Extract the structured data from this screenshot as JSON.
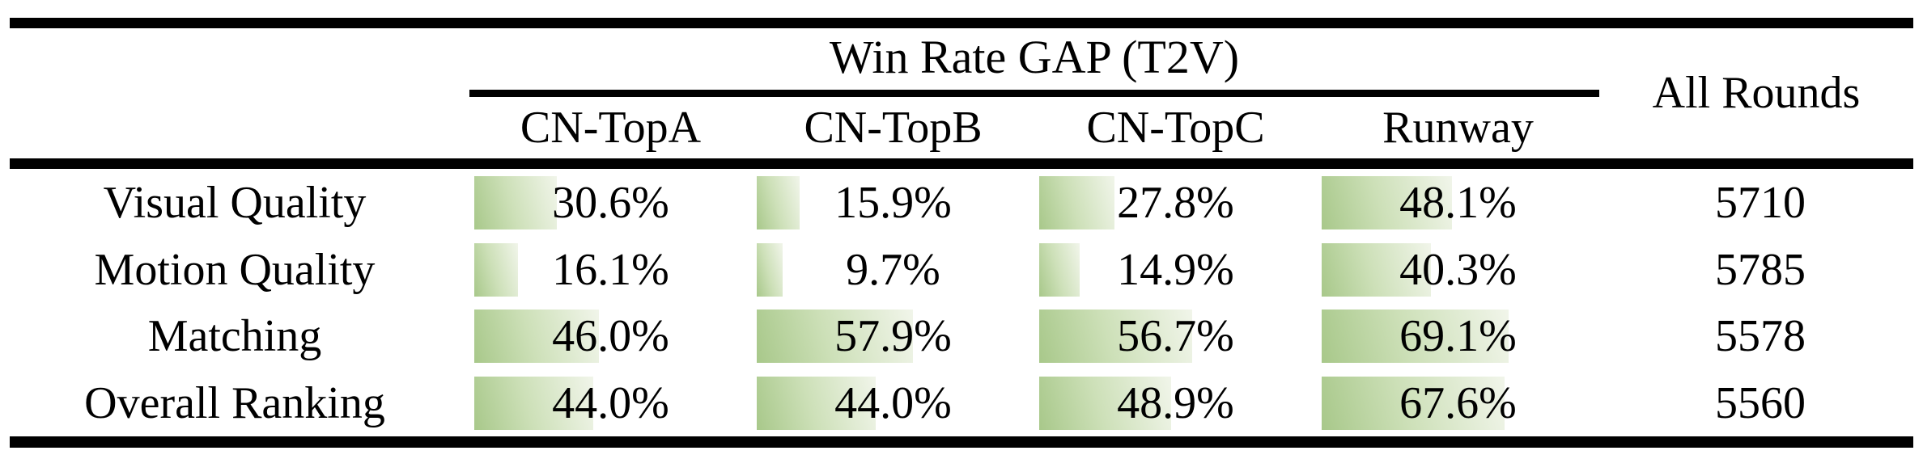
{
  "table": {
    "group_header": "Win Rate GAP (T2V)",
    "all_rounds_header": "All Rounds",
    "columns": [
      "CN-TopA",
      "CN-TopB",
      "CN-TopC",
      "Runway"
    ],
    "rows": [
      {
        "label": "Visual Quality",
        "cells": [
          {
            "text": "30.6%",
            "pct": 30.6
          },
          {
            "text": "15.9%",
            "pct": 15.9
          },
          {
            "text": "27.8%",
            "pct": 27.8
          },
          {
            "text": "48.1%",
            "pct": 48.1
          }
        ],
        "all_rounds": "5710"
      },
      {
        "label": "Motion Quality",
        "cells": [
          {
            "text": "16.1%",
            "pct": 16.1
          },
          {
            "text": "9.7%",
            "pct": 9.7
          },
          {
            "text": "14.9%",
            "pct": 14.9
          },
          {
            "text": "40.3%",
            "pct": 40.3
          }
        ],
        "all_rounds": "5785"
      },
      {
        "label": "Matching",
        "cells": [
          {
            "text": "46.0%",
            "pct": 46.0
          },
          {
            "text": "57.9%",
            "pct": 57.9
          },
          {
            "text": "56.7%",
            "pct": 56.7
          },
          {
            "text": "69.1%",
            "pct": 69.1
          }
        ],
        "all_rounds": "5578"
      },
      {
        "label": "Overall Ranking",
        "cells": [
          {
            "text": "44.0%",
            "pct": 44.0
          },
          {
            "text": "44.0%",
            "pct": 44.0
          },
          {
            "text": "48.9%",
            "pct": 48.9
          },
          {
            "text": "67.6%",
            "pct": 67.6
          }
        ],
        "all_rounds": "5560"
      }
    ],
    "bar_colors": {
      "start": "#a8c88a",
      "mid": "#cde0b8",
      "end": "#f1f5ea"
    }
  },
  "chart_data": {
    "type": "table",
    "title": "Win Rate GAP (T2V)",
    "categories": [
      "Visual Quality",
      "Motion Quality",
      "Matching",
      "Overall Ranking"
    ],
    "series": [
      {
        "name": "CN-TopA",
        "values": [
          30.6,
          16.1,
          46.0,
          44.0
        ]
      },
      {
        "name": "CN-TopB",
        "values": [
          15.9,
          9.7,
          57.9,
          44.0
        ]
      },
      {
        "name": "CN-TopC",
        "values": [
          27.8,
          14.9,
          56.7,
          48.9
        ]
      },
      {
        "name": "Runway",
        "values": [
          48.1,
          40.3,
          69.1,
          67.6
        ]
      }
    ],
    "all_rounds": {
      "name": "All Rounds",
      "values": [
        5710,
        5785,
        5578,
        5560
      ]
    },
    "unit": "%",
    "bar_full_scale_percent": 100,
    "layout": "in-cell data bars, left-aligned, width proportional to value"
  }
}
